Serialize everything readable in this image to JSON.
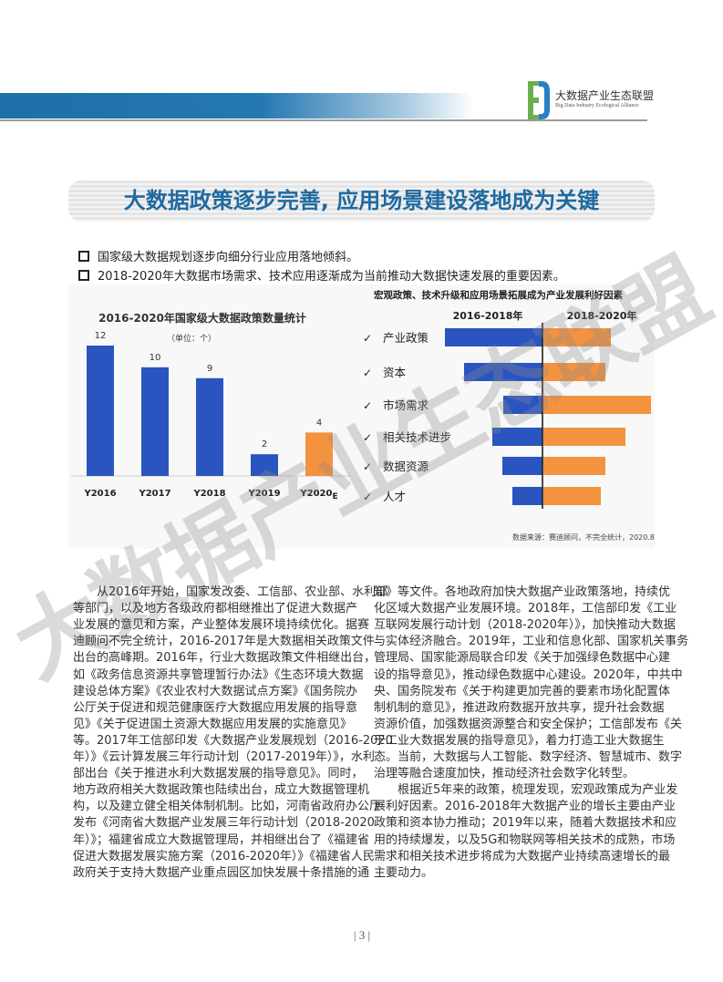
{
  "header": {
    "logo_cn": "大数据产业生态联盟",
    "logo_en": "Big Data Industry Ecological Alliance",
    "accent_color": "#1f6fa8"
  },
  "title": "大数据政策逐步完善, 应用场景建设落地成为关键",
  "bullets": [
    "国家级大数据规划逐步向细分行业应用落地倾斜。",
    "2018-2020年大数据市场需求、技术应用逐渐成为当前推动大数据快速发展的重要因素。"
  ],
  "chart_data": [
    {
      "type": "bar",
      "title": "2016-2020年国家级大数据政策数量统计",
      "unit_label": "（单位：个）",
      "categories": [
        "Y2016",
        "Y2017",
        "Y2018",
        "Y2019",
        "Y2020"
      ],
      "category_suffix": [
        "",
        "",
        "",
        "",
        "E"
      ],
      "values": [
        12,
        10,
        9,
        2,
        4
      ],
      "colors": [
        "#2a55c0",
        "#2a55c0",
        "#2a55c0",
        "#2a55c0",
        "#f3923f"
      ],
      "ylim": [
        0,
        12
      ]
    },
    {
      "type": "bar",
      "orientation": "horizontal-diverging",
      "title": "宏观政策、技术升级和应用场景拓展成为产业发展利好因素",
      "categories": [
        "产业政策",
        "资本",
        "市场需求",
        "相关技术进步",
        "数据资源",
        "人才"
      ],
      "check_mark": "✓",
      "series": [
        {
          "name": "2016-2018年",
          "values": [
            107,
            86,
            43,
            55,
            44,
            33
          ],
          "color": "#2a55c0"
        },
        {
          "name": "2018-2020年",
          "values": [
            74,
            68,
            118,
            90,
            68,
            63
          ],
          "color": "#f3923f"
        }
      ],
      "source": "数据来源：赛迪顾问，不完全统计，2020.8"
    }
  ],
  "body": {
    "left_lines": [
      "　　从2016年开始，国家发改委、工信部、农业部、水利部",
      "等部门，以及地方各级政府都相继推出了促进大数据产",
      "业发展的意见和方案，产业整体发展环境持续优化。据赛",
      "迪顾问不完全统计，2016-2017年是大数据相关政策文件",
      "出台的高峰期。2016年，行业大数据政策文件相继出台，",
      "如《政务信息资源共享管理暂行办法》《生态环境大数据",
      "建设总体方案》《农业农村大数据试点方案》《国务院办",
      "公厅关于促进和规范健康医疗大数据应用发展的指导意",
      "见》《关于促进国土资源大数据应用发展的实施意见》",
      "等。2017年工信部印发《大数据产业发展规划（2016-2020",
      "年）》《云计算发展三年行动计划（2017-2019年）》，水利",
      "部出台《关于推进水利大数据发展的指导意见》。同时，",
      "地方政府相关大数据政策也陆续出台，成立大数据管理机",
      "构，以及建立健全相关体制机制。比如，河南省政府办公厅",
      "发布《河南省大数据产业发展三年行动计划（2018-2020",
      "年）》；福建省成立大数据管理局，并相继出台了《福建省",
      "促进大数据发展实施方案（2016-2020年）》《福建省人民",
      "政府关于支持大数据产业重点园区加快发展十条措施的通"
    ],
    "right_lines": [
      "知》等文件。各地政府加快大数据产业政策落地，持续优",
      "化区域大数据产业发展环境。2018年，工信部印发《工业",
      "互联网发展行动计划（2018-2020年）》，加快推动大数据",
      "与实体经济融合。2019年，工业和信息化部、国家机关事务",
      "管理局、国家能源局联合印发《关于加强绿色数据中心建",
      "设的指导意见》，推动绿色数据中心建设。2020年，中共中",
      "央、国务院发布《关于构建更加完善的要素市场化配置体",
      "制机制的意见》，推进政府数据开放共享，提升社会数据",
      "资源价值，加强数据资源整合和安全保护；工信部发布《关",
      "于工业大数据发展的指导意见》，着力打造工业大数据生",
      "态。当前，大数据与人工智能、数字经济、智慧城市、数字",
      "治理等融合速度加快，推动经济社会数字化转型。",
      "　　根据近5年来的政策，梳理发现，宏观政策成为产业发",
      "展利好因素。2016-2018年大数据产业的增长主要由产业",
      "政策和资本协力推动；2019年以来，随着大数据技术和应",
      "用的持续爆发，以及5G和物联网等相关技术的成熟，市场",
      "需求和相关技术进步将成为大数据产业持续高速增长的最",
      "主要动力。"
    ]
  },
  "watermark": "大数据产业生态联盟",
  "page_number": "| 3 |"
}
